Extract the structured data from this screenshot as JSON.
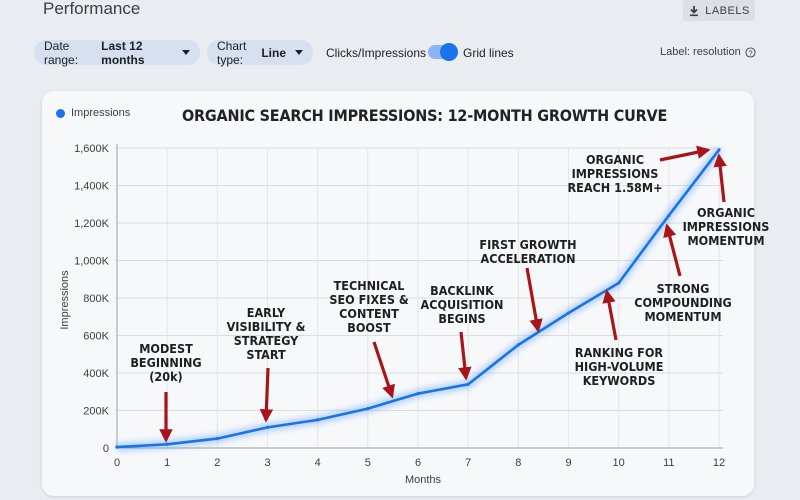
{
  "page": {
    "title": "Performance",
    "labels_button": "LABELS",
    "download_icon": "download-icon"
  },
  "filters": {
    "date_range_label": "Date range:",
    "date_range_value": "Last 12 months",
    "chart_type_label": "Chart type:",
    "chart_type_value": "Line",
    "toggle_left_label": "Clicks/Impressions",
    "toggle_on": true,
    "toggle_right_label": "Grid lines",
    "label_mode": "Label: resolution",
    "help_icon": "help-circle-icon"
  },
  "chart_data": {
    "type": "line",
    "title": "ORGANIC SEARCH IMPRESSIONS: 12-MONTH GROWTH CURVE",
    "xlabel": "Months",
    "ylabel": "Impressions",
    "xlim": [
      0,
      12
    ],
    "ylim": [
      0,
      1600000
    ],
    "x_ticks": [
      "0",
      "1",
      "2",
      "3",
      "4",
      "5",
      "6",
      "7",
      "8",
      "9",
      "10",
      "11",
      "12"
    ],
    "y_ticks": [
      "0",
      "200K",
      "400K",
      "600K",
      "800K",
      "1,000K",
      "1,200K",
      "1,400K",
      "1,600K"
    ],
    "grid": true,
    "legend": "top-left",
    "line_color": "#1a73e8",
    "series": [
      {
        "name": "Impressions",
        "x": [
          0,
          1,
          2,
          3,
          4,
          5,
          6,
          7,
          8,
          9,
          10,
          11,
          12
        ],
        "y": [
          5000,
          20000,
          50000,
          110000,
          150000,
          210000,
          290000,
          340000,
          550000,
          720000,
          880000,
          1240000,
          1590000
        ]
      }
    ],
    "annotations": [
      {
        "text": [
          "MODEST",
          "BEGINNING",
          "(20k)"
        ],
        "x": 1
      },
      {
        "text": [
          "EARLY",
          "VISIBILITY &",
          "STRATEGY",
          "START"
        ],
        "x": 3
      },
      {
        "text": [
          "TECHNICAL",
          "SEO FIXES &",
          "CONTENT",
          "BOOST"
        ],
        "x": 5.4
      },
      {
        "text": [
          "BACKLINK",
          "ACQUISITION",
          "BEGINS"
        ],
        "x": 6.9
      },
      {
        "text": [
          "FIRST GROWTH",
          "ACCELERATION"
        ],
        "x": 8.3
      },
      {
        "text": [
          "RANKING FOR",
          "HIGH-VOLUME",
          "KEYWORDS"
        ],
        "x": 10
      },
      {
        "text": [
          "STRONG",
          "COMPOUNDING",
          "MOMENTUM"
        ],
        "x": 11.2
      },
      {
        "text": [
          "ORGANIC",
          "IMPRESSIONS",
          "MOMENTUM"
        ],
        "x": 12
      },
      {
        "text": [
          "ORGANIC",
          "IMPRESSIONS",
          "REACH 1.58M+"
        ],
        "x": 12
      }
    ],
    "arrow_color": "#a8141a"
  }
}
